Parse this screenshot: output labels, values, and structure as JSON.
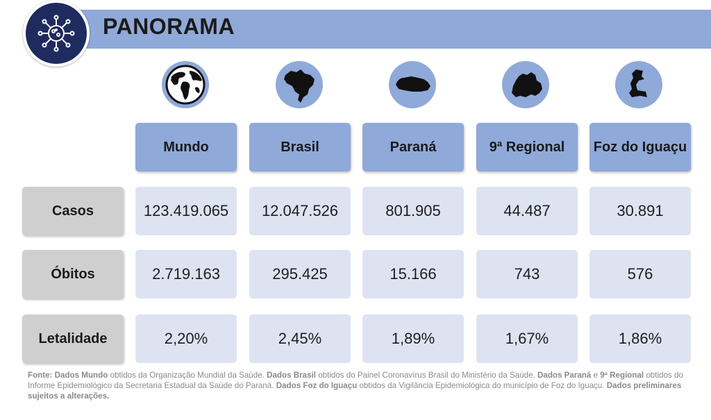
{
  "header": {
    "title": "PANORAMA",
    "logo_icon": "virus-icon"
  },
  "columns": [
    {
      "label": "Mundo",
      "icon": "globe-icon"
    },
    {
      "label": "Brasil",
      "icon": "brazil-map-icon"
    },
    {
      "label": "Paraná",
      "icon": "parana-map-icon"
    },
    {
      "label": "9ª Regional",
      "icon": "regional-map-icon"
    },
    {
      "label": "Foz do Iguaçu",
      "icon": "foz-map-icon"
    }
  ],
  "rows": [
    {
      "label": "Casos",
      "values": [
        "123.419.065",
        "12.047.526",
        "801.905",
        "44.487",
        "30.891"
      ]
    },
    {
      "label": "Óbitos",
      "values": [
        "2.719.163",
        "295.425",
        "15.166",
        "743",
        "576"
      ]
    },
    {
      "label": "Letalidade",
      "values": [
        "2,20%",
        "2,45%",
        "1,89%",
        "1,67%",
        "1,86%"
      ]
    }
  ],
  "footnote": {
    "segments": [
      {
        "t": "Fonte: Dados Mundo",
        "b": true
      },
      {
        "t": " obtidos da Organização Mundial da Saúde. ",
        "b": false
      },
      {
        "t": "Dados Brasil",
        "b": true
      },
      {
        "t": " obtidos do Painel Coronavírus Brasil do Ministério da Saúde. ",
        "b": false
      },
      {
        "t": "Dados Paraná",
        "b": true
      },
      {
        "t": " e ",
        "b": false
      },
      {
        "t": "9ª Regional",
        "b": true
      },
      {
        "t": " obtidos do Informe Epidemiológico da Secretaria Estadual da Saúde do Paraná. ",
        "b": false
      },
      {
        "t": "Dados Foz do Iguaçu",
        "b": true
      },
      {
        "t": " obtidos da Vigilância Epidemiológica do município de Foz do Iguaçu. ",
        "b": false
      },
      {
        "t": "Dados preliminares sujeitos a alterações.",
        "b": true
      }
    ]
  },
  "colors": {
    "accent_blue": "#8fa9d9",
    "cell_bg": "#dde3f1",
    "row_head_bg": "#cfcfcf",
    "logo_bg": "#1f2b5e"
  }
}
